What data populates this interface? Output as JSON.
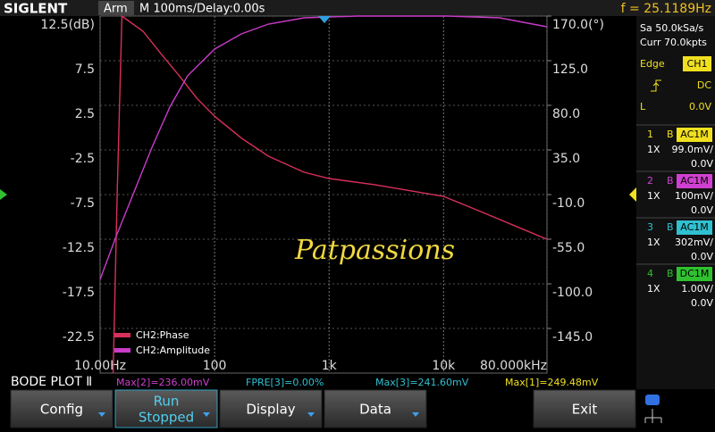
{
  "top_bar": {
    "brand": "SIGLENT",
    "status": "Arm",
    "timebase": "M 100ms/",
    "delay": "Delay:0.00s",
    "frequency": "f = 25.1189Hz"
  },
  "side_panel": {
    "sample_rate": "Sa 50.0kSa/s",
    "memory": "Curr 70.0kpts",
    "trigger": {
      "type": "Edge",
      "source": "CH1",
      "coupling": "DC",
      "level_label": "L",
      "level": "0.0V"
    },
    "channels": [
      {
        "number": "1",
        "bw": "B",
        "coupling": "AC1M",
        "probe": "1X",
        "scale": "99.0mV/",
        "offset": "0.0V",
        "color": "#f0e020"
      },
      {
        "number": "2",
        "bw": "B",
        "coupling": "AC1M",
        "probe": "1X",
        "scale": "100mV/",
        "offset": "0.0V",
        "color": "#d040d0"
      },
      {
        "number": "3",
        "bw": "B",
        "coupling": "AC1M",
        "probe": "1X",
        "scale": "302mV/",
        "offset": "0.0V",
        "color": "#30c0d0"
      },
      {
        "number": "4",
        "bw": "B",
        "coupling": "DC1M",
        "probe": "1X",
        "scale": "1.00V/",
        "offset": "0.0V",
        "color": "#30c030"
      }
    ]
  },
  "chart_data": {
    "type": "line",
    "x_scale": "log",
    "xlim": [
      10,
      80000
    ],
    "xticks": [
      {
        "value": 10,
        "label": "10.00Hz"
      },
      {
        "value": 100,
        "label": "100"
      },
      {
        "value": 1000,
        "label": "1k"
      },
      {
        "value": 10000,
        "label": "10k"
      },
      {
        "value": 80000,
        "label": "80.000kHz"
      }
    ],
    "ylim": [
      -27.5,
      12.5
    ],
    "yticks": [
      {
        "value": 12.5,
        "label": "12.5(dB)"
      },
      7.5,
      2.5,
      -2.5,
      -7.5,
      -12.5,
      -17.5,
      -22.5
    ],
    "y2lim": [
      -190,
      170
    ],
    "y2ticks": [
      {
        "value": 170,
        "label": "170.0(°)"
      },
      {
        "value": 125,
        "label": "125.0"
      },
      {
        "value": 80,
        "label": "80.0"
      },
      {
        "value": 35,
        "label": "35.0"
      },
      {
        "value": -10,
        "label": "-10.0"
      },
      {
        "value": -55,
        "label": "-55.0"
      },
      {
        "value": -100,
        "label": "-100.0"
      },
      {
        "value": -145,
        "label": "-145.0"
      }
    ],
    "grid": true,
    "legend": "bottom-left",
    "series": [
      {
        "name": "CH2:Phase",
        "color": "#d8305a",
        "axis": "y2",
        "x": [
          13,
          14.1,
          15.5,
          23.7,
          34,
          49,
          70,
          100,
          171,
          295,
          606,
          1000,
          2500,
          10000,
          22000,
          45000,
          80000
        ],
        "values": [
          -190,
          -10,
          170,
          154.7,
          132,
          110,
          87,
          69,
          47,
          28.7,
          12.5,
          6.2,
          0,
          -11.8,
          -28,
          -43,
          -55
        ]
      },
      {
        "name": "CH2:Amplitude",
        "color": "#c83cc8",
        "x": [
          10,
          13.8,
          19.8,
          28.4,
          40.6,
          58,
          100,
          171,
          295,
          606,
          1780,
          10800,
          31000,
          80000
        ],
        "values": [
          -17,
          -12.2,
          -7.2,
          -2.2,
          2.3,
          5.8,
          8.8,
          10.5,
          11.6,
          12.3,
          12.5,
          12.5,
          12.3,
          11.3
        ]
      }
    ]
  },
  "watermark": "Patpassions",
  "readouts": {
    "mode": "BODE PLOT Ⅱ",
    "items": [
      {
        "text": "Max[2]=236.00mV",
        "color": "#d040d0"
      },
      {
        "text": "FPRE[3]=0.00%",
        "color": "#30c0d0"
      },
      {
        "text": "Max[3]=241.60mV",
        "color": "#30c0d0"
      },
      {
        "text": "Max[1]=249.48mV",
        "color": "#f0e020"
      }
    ]
  },
  "softkeys": [
    {
      "lines": [
        "Config"
      ]
    },
    {
      "lines": [
        "Run",
        "Stopped"
      ]
    },
    {
      "lines": [
        "Display"
      ]
    },
    {
      "lines": [
        "Data"
      ]
    },
    {
      "lines": [
        "Exit"
      ]
    }
  ]
}
